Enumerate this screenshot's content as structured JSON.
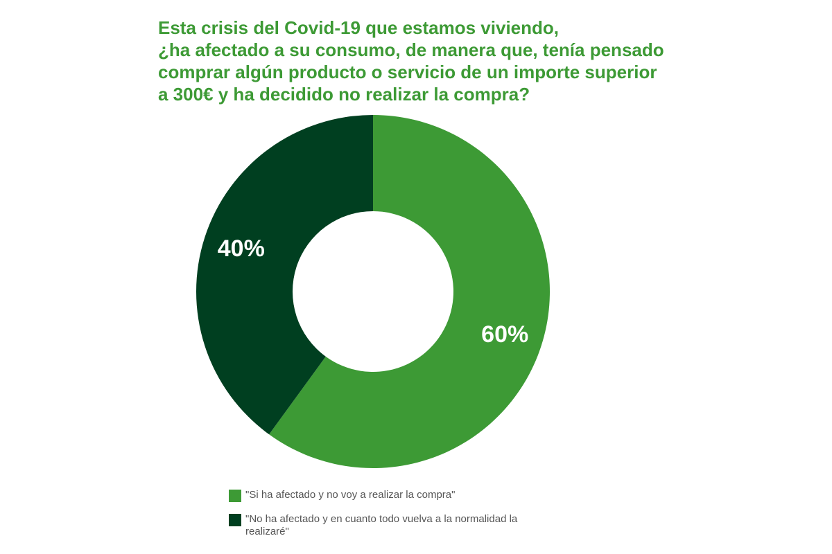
{
  "chart_data": {
    "type": "pie",
    "variant": "donut",
    "title": "Esta crisis del Covid-19 que estamos viviendo,\n¿ha afectado a su consumo, de manera que, tenía pensado\ncomprar algún producto o servicio de un importe superior\na 300€ y ha decidido no realizar la compra?",
    "slices": [
      {
        "label": "\"Si ha afectado y no voy a realizar la compra\"",
        "value": 60,
        "display": "60%",
        "color": "#3d9a35"
      },
      {
        "label": "\"No ha afectado y en cuanto todo vuelva a la normalidad la realizaré\"",
        "value": 40,
        "display": "40%",
        "color": "#003f20"
      }
    ],
    "legend_position": "bottom"
  }
}
